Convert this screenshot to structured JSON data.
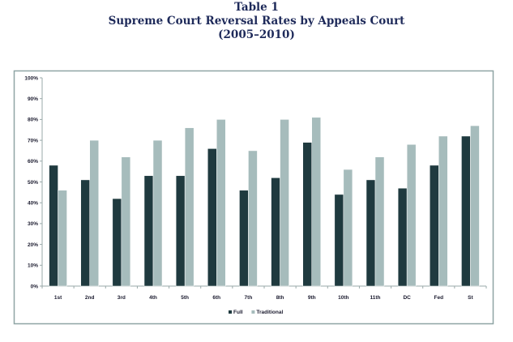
{
  "heading": {
    "table_label": "Table 1",
    "title": "Supreme Court Reversal Rates by Appeals Court",
    "subtitle": "(2005–2010)"
  },
  "chart_data": {
    "type": "bar",
    "title": "Supreme Court Reversal Rates by Appeals Court",
    "xlabel": "",
    "ylabel": "",
    "categories": [
      "1st",
      "2nd",
      "3rd",
      "4th",
      "5th",
      "6th",
      "7th",
      "8th",
      "9th",
      "10th",
      "11th",
      "DC",
      "Fed",
      "St"
    ],
    "series": [
      {
        "name": "Full",
        "color": "#1f3a3f",
        "values": [
          58,
          51,
          42,
          53,
          53,
          66,
          46,
          52,
          69,
          44,
          51,
          47,
          58,
          72
        ]
      },
      {
        "name": "Traditional",
        "color": "#a6bcbc",
        "values": [
          46,
          70,
          62,
          70,
          76,
          80,
          65,
          80,
          81,
          56,
          62,
          68,
          72,
          77
        ]
      }
    ],
    "ylim": [
      0,
      100
    ],
    "yticks": [
      0,
      10,
      20,
      30,
      40,
      50,
      60,
      70,
      80,
      90,
      100
    ],
    "ytick_labels": [
      "0%",
      "10%",
      "20%",
      "30%",
      "40%",
      "50%",
      "60%",
      "70%",
      "80%",
      "90%",
      "100%"
    ],
    "grid": false,
    "legend_position": "bottom-center"
  }
}
